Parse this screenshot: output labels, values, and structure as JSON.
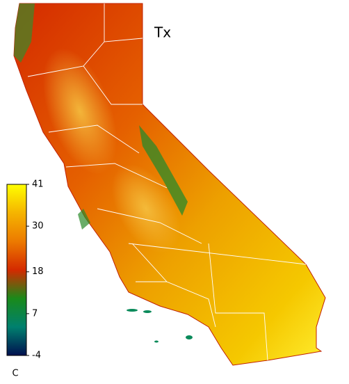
{
  "title": "Tx",
  "colorbar": {
    "unit": "C",
    "lim": [
      -4,
      41
    ],
    "ticks": [
      -4,
      7,
      18,
      30,
      41
    ],
    "colors": [
      "#ffff00",
      "#f5b400",
      "#ec7a00",
      "#d42a00",
      "#1a8a1a",
      "#00806e",
      "#001050"
    ]
  }
}
